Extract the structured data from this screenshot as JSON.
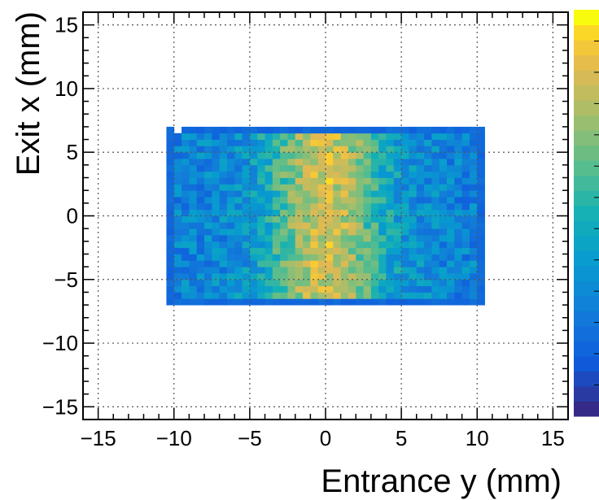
{
  "chart_data": {
    "type": "heatmap",
    "title": "",
    "xlabel": "Entrance y (mm)",
    "ylabel": "Exit x (mm)",
    "xlim": [
      -16,
      16
    ],
    "ylim": [
      -16,
      16
    ],
    "grid": true,
    "x_ticks": [
      -15,
      -10,
      -5,
      0,
      5,
      10,
      15
    ],
    "y_ticks": [
      -15,
      -10,
      -5,
      0,
      5,
      10,
      15
    ],
    "x_tick_labels": [
      "−15",
      "−10",
      "−5",
      "0",
      "5",
      "10",
      "15"
    ],
    "y_tick_labels": [
      "−15",
      "−10",
      "−5",
      "0",
      "5",
      "10",
      "15"
    ],
    "colorscale": "parula",
    "colorbar": "right, no numeric labels",
    "bin_size_mm": 0.5,
    "filled_region": {
      "x": [
        -10.5,
        10.5
      ],
      "y": [
        -7,
        7
      ]
    },
    "value_range": [
      0,
      1
    ],
    "values_note": "relative intensity per 0.5 mm bin; blue at edges, yellow peak near x=0, y in [-5,5]",
    "colors": {
      "low": "#352a87",
      "edge": "#2a5fd8",
      "mid": "#18b2a8",
      "high": "#fbd333",
      "max": "#f9fb0e"
    }
  }
}
